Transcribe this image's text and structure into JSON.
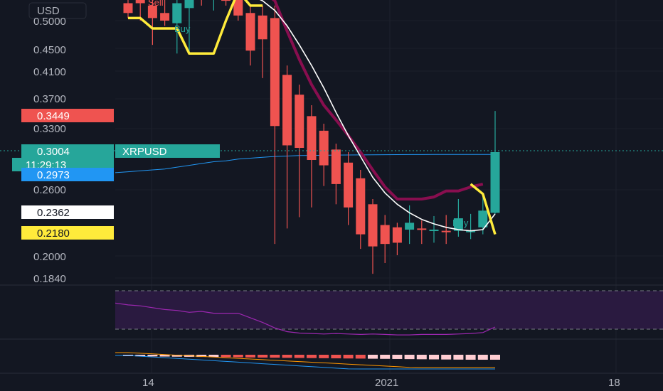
{
  "price_scale": {
    "currency": "USD",
    "ticks": [
      "0.5000",
      "0.4500",
      "0.4100",
      "0.3700",
      "0.3300",
      "0.2600",
      "0.2000",
      "0.1840"
    ]
  },
  "time_scale": {
    "labels": [
      "14",
      "2021",
      "18"
    ]
  },
  "tags": {
    "red": {
      "value": "0.3449",
      "color": "#ef5350"
    },
    "last": {
      "value": "0.3004",
      "symbol": "XRPUSD",
      "countdown": "11:29:13",
      "color": "#26a69a"
    },
    "blue": {
      "value": "0.2973",
      "color": "#2196f3"
    },
    "white": {
      "value": "0.2362",
      "color": "#ffffff"
    },
    "yellow": {
      "value": "0.2180",
      "color": "#ffeb3b"
    }
  },
  "signals": {
    "buy": "Buy",
    "sell": "Sell"
  },
  "colors": {
    "background": "#131722",
    "up": "#26a69a",
    "down": "#ef5350",
    "ma_fast": "#ffffff",
    "ma_slow": "#880e4f",
    "trail": "#ffeb3b",
    "long_ma": "#2196f3",
    "rsi": "#9c27b0",
    "macd_signal": "#ff9800",
    "macd_line": "#2196f3"
  },
  "chart_data": {
    "type": "candlestick",
    "symbol": "XRPUSD",
    "y_scale": "log",
    "ylim": [
      0.175,
      0.56
    ],
    "candles": [
      {
        "o": 0.535,
        "h": 0.56,
        "l": 0.505,
        "c": 0.515
      },
      {
        "o": 0.545,
        "h": 0.56,
        "l": 0.5,
        "c": 0.535
      },
      {
        "o": 0.53,
        "h": 0.56,
        "l": 0.455,
        "c": 0.505
      },
      {
        "o": 0.515,
        "h": 0.545,
        "l": 0.49,
        "c": 0.5
      },
      {
        "o": 0.495,
        "h": 0.56,
        "l": 0.44,
        "c": 0.535
      },
      {
        "o": 0.525,
        "h": 0.56,
        "l": 0.44,
        "c": 0.555
      },
      {
        "o": 0.555,
        "h": 0.56,
        "l": 0.53,
        "c": 0.545
      },
      {
        "o": 0.545,
        "h": 0.56,
        "l": 0.52,
        "c": 0.55
      },
      {
        "o": 0.555,
        "h": 0.56,
        "l": 0.53,
        "c": 0.54
      },
      {
        "o": 0.545,
        "h": 0.56,
        "l": 0.5,
        "c": 0.51
      },
      {
        "o": 0.515,
        "h": 0.53,
        "l": 0.42,
        "c": 0.445
      },
      {
        "o": 0.51,
        "h": 0.53,
        "l": 0.4,
        "c": 0.465
      },
      {
        "o": 0.505,
        "h": 0.53,
        "l": 0.21,
        "c": 0.332
      },
      {
        "o": 0.405,
        "h": 0.42,
        "l": 0.223,
        "c": 0.308
      },
      {
        "o": 0.375,
        "h": 0.39,
        "l": 0.233,
        "c": 0.305
      },
      {
        "o": 0.345,
        "h": 0.36,
        "l": 0.242,
        "c": 0.291
      },
      {
        "o": 0.326,
        "h": 0.335,
        "l": 0.263,
        "c": 0.285
      },
      {
        "o": 0.303,
        "h": 0.31,
        "l": 0.245,
        "c": 0.265
      },
      {
        "o": 0.288,
        "h": 0.3,
        "l": 0.226,
        "c": 0.242
      },
      {
        "o": 0.271,
        "h": 0.28,
        "l": 0.206,
        "c": 0.218
      },
      {
        "o": 0.245,
        "h": 0.25,
        "l": 0.187,
        "c": 0.208
      },
      {
        "o": 0.226,
        "h": 0.235,
        "l": 0.195,
        "c": 0.21
      },
      {
        "o": 0.224,
        "h": 0.228,
        "l": 0.201,
        "c": 0.211
      },
      {
        "o": 0.222,
        "h": 0.244,
        "l": 0.21,
        "c": 0.228
      },
      {
        "o": 0.223,
        "h": 0.23,
        "l": 0.21,
        "c": 0.222
      },
      {
        "o": 0.221,
        "h": 0.234,
        "l": 0.211,
        "c": 0.222
      },
      {
        "o": 0.221,
        "h": 0.235,
        "l": 0.21,
        "c": 0.22
      },
      {
        "o": 0.221,
        "h": 0.25,
        "l": 0.216,
        "c": 0.232
      },
      {
        "o": 0.221,
        "h": 0.236,
        "l": 0.214,
        "c": 0.221
      },
      {
        "o": 0.224,
        "h": 0.256,
        "l": 0.218,
        "c": 0.239
      },
      {
        "o": 0.237,
        "h": 0.352,
        "l": 0.236,
        "c": 0.3
      }
    ],
    "ma_fast": [
      0.555,
      0.557,
      0.558,
      0.559,
      0.559,
      0.559,
      0.559,
      0.558,
      0.557,
      0.556,
      0.552,
      0.54,
      0.52,
      0.49,
      0.455,
      0.42,
      0.385,
      0.35,
      0.32,
      0.295,
      0.272,
      0.256,
      0.245,
      0.237,
      0.231,
      0.227,
      0.224,
      0.222,
      0.221,
      0.222,
      0.236
    ],
    "ma_slow": [
      null,
      null,
      null,
      null,
      null,
      null,
      null,
      null,
      null,
      null,
      null,
      0.56,
      0.54,
      0.48,
      0.43,
      0.39,
      0.36,
      0.34,
      0.32,
      0.3,
      0.28,
      0.262,
      0.25,
      0.25,
      0.25,
      0.252,
      0.258,
      0.258,
      0.262,
      0.265,
      null
    ],
    "trail": [
      0.505,
      0.505,
      0.485,
      0.485,
      0.485,
      0.44,
      0.44,
      0.44,
      0.5,
      0.56,
      0.53,
      0.53,
      null,
      null,
      null,
      null,
      null,
      null,
      null,
      null,
      null,
      null,
      null,
      null,
      null,
      null,
      null,
      null,
      0.265,
      0.255,
      0.218
    ],
    "long_ma": [
      0.278,
      0.279,
      0.28,
      0.281,
      0.283,
      0.285,
      0.287,
      0.289,
      0.29,
      0.292,
      0.293,
      0.294,
      0.295,
      0.2955,
      0.296,
      0.2962,
      0.2964,
      0.2966,
      0.2967,
      0.2968,
      0.2969,
      0.297,
      0.2971,
      0.2972,
      0.2972,
      0.2973,
      0.2973,
      0.2973,
      0.2973,
      0.2973,
      0.2973
    ],
    "rsi": [
      68,
      66,
      62,
      58,
      56,
      52,
      54,
      50,
      50,
      50,
      40,
      30,
      18,
      10,
      7,
      6,
      5,
      6,
      5,
      4,
      5,
      4,
      3,
      3,
      4,
      4,
      4,
      5,
      6,
      8,
      20
    ]
  }
}
